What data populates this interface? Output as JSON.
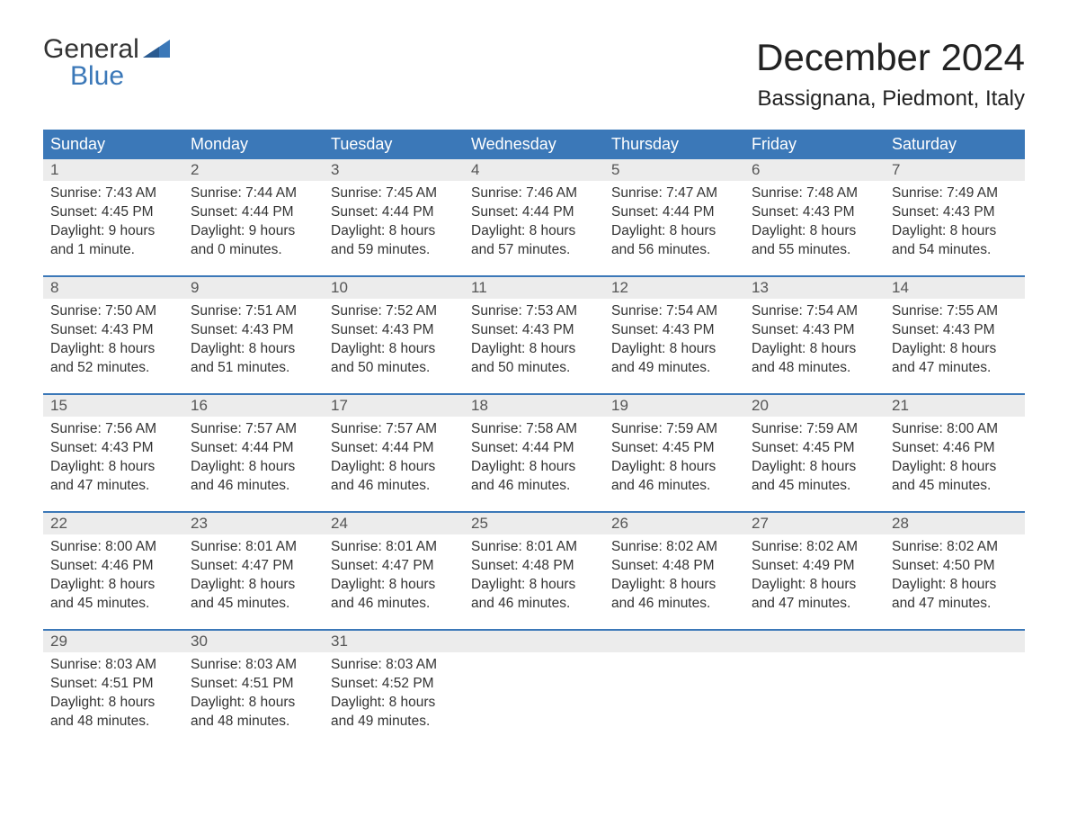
{
  "logo": {
    "word1": "General",
    "word2": "Blue"
  },
  "title": "December 2024",
  "location": "Bassignana, Piedmont, Italy",
  "colors": {
    "header_bg": "#3b78b8",
    "header_text": "#ffffff",
    "daynum_bg": "#ececec",
    "text": "#333333",
    "logo_blue": "#3b78b8"
  },
  "layout": {
    "columns": 7,
    "rows": 5
  },
  "weekdays": [
    "Sunday",
    "Monday",
    "Tuesday",
    "Wednesday",
    "Thursday",
    "Friday",
    "Saturday"
  ],
  "days": [
    {
      "n": 1,
      "sunrise": "7:43 AM",
      "sunset": "4:45 PM",
      "daylight": "9 hours and 1 minute."
    },
    {
      "n": 2,
      "sunrise": "7:44 AM",
      "sunset": "4:44 PM",
      "daylight": "9 hours and 0 minutes."
    },
    {
      "n": 3,
      "sunrise": "7:45 AM",
      "sunset": "4:44 PM",
      "daylight": "8 hours and 59 minutes."
    },
    {
      "n": 4,
      "sunrise": "7:46 AM",
      "sunset": "4:44 PM",
      "daylight": "8 hours and 57 minutes."
    },
    {
      "n": 5,
      "sunrise": "7:47 AM",
      "sunset": "4:44 PM",
      "daylight": "8 hours and 56 minutes."
    },
    {
      "n": 6,
      "sunrise": "7:48 AM",
      "sunset": "4:43 PM",
      "daylight": "8 hours and 55 minutes."
    },
    {
      "n": 7,
      "sunrise": "7:49 AM",
      "sunset": "4:43 PM",
      "daylight": "8 hours and 54 minutes."
    },
    {
      "n": 8,
      "sunrise": "7:50 AM",
      "sunset": "4:43 PM",
      "daylight": "8 hours and 52 minutes."
    },
    {
      "n": 9,
      "sunrise": "7:51 AM",
      "sunset": "4:43 PM",
      "daylight": "8 hours and 51 minutes."
    },
    {
      "n": 10,
      "sunrise": "7:52 AM",
      "sunset": "4:43 PM",
      "daylight": "8 hours and 50 minutes."
    },
    {
      "n": 11,
      "sunrise": "7:53 AM",
      "sunset": "4:43 PM",
      "daylight": "8 hours and 50 minutes."
    },
    {
      "n": 12,
      "sunrise": "7:54 AM",
      "sunset": "4:43 PM",
      "daylight": "8 hours and 49 minutes."
    },
    {
      "n": 13,
      "sunrise": "7:54 AM",
      "sunset": "4:43 PM",
      "daylight": "8 hours and 48 minutes."
    },
    {
      "n": 14,
      "sunrise": "7:55 AM",
      "sunset": "4:43 PM",
      "daylight": "8 hours and 47 minutes."
    },
    {
      "n": 15,
      "sunrise": "7:56 AM",
      "sunset": "4:43 PM",
      "daylight": "8 hours and 47 minutes."
    },
    {
      "n": 16,
      "sunrise": "7:57 AM",
      "sunset": "4:44 PM",
      "daylight": "8 hours and 46 minutes."
    },
    {
      "n": 17,
      "sunrise": "7:57 AM",
      "sunset": "4:44 PM",
      "daylight": "8 hours and 46 minutes."
    },
    {
      "n": 18,
      "sunrise": "7:58 AM",
      "sunset": "4:44 PM",
      "daylight": "8 hours and 46 minutes."
    },
    {
      "n": 19,
      "sunrise": "7:59 AM",
      "sunset": "4:45 PM",
      "daylight": "8 hours and 46 minutes."
    },
    {
      "n": 20,
      "sunrise": "7:59 AM",
      "sunset": "4:45 PM",
      "daylight": "8 hours and 45 minutes."
    },
    {
      "n": 21,
      "sunrise": "8:00 AM",
      "sunset": "4:46 PM",
      "daylight": "8 hours and 45 minutes."
    },
    {
      "n": 22,
      "sunrise": "8:00 AM",
      "sunset": "4:46 PM",
      "daylight": "8 hours and 45 minutes."
    },
    {
      "n": 23,
      "sunrise": "8:01 AM",
      "sunset": "4:47 PM",
      "daylight": "8 hours and 45 minutes."
    },
    {
      "n": 24,
      "sunrise": "8:01 AM",
      "sunset": "4:47 PM",
      "daylight": "8 hours and 46 minutes."
    },
    {
      "n": 25,
      "sunrise": "8:01 AM",
      "sunset": "4:48 PM",
      "daylight": "8 hours and 46 minutes."
    },
    {
      "n": 26,
      "sunrise": "8:02 AM",
      "sunset": "4:48 PM",
      "daylight": "8 hours and 46 minutes."
    },
    {
      "n": 27,
      "sunrise": "8:02 AM",
      "sunset": "4:49 PM",
      "daylight": "8 hours and 47 minutes."
    },
    {
      "n": 28,
      "sunrise": "8:02 AM",
      "sunset": "4:50 PM",
      "daylight": "8 hours and 47 minutes."
    },
    {
      "n": 29,
      "sunrise": "8:03 AM",
      "sunset": "4:51 PM",
      "daylight": "8 hours and 48 minutes."
    },
    {
      "n": 30,
      "sunrise": "8:03 AM",
      "sunset": "4:51 PM",
      "daylight": "8 hours and 48 minutes."
    },
    {
      "n": 31,
      "sunrise": "8:03 AM",
      "sunset": "4:52 PM",
      "daylight": "8 hours and 49 minutes."
    }
  ],
  "labels": {
    "sunrise_prefix": "Sunrise: ",
    "sunset_prefix": "Sunset: ",
    "daylight_prefix": "Daylight: "
  }
}
